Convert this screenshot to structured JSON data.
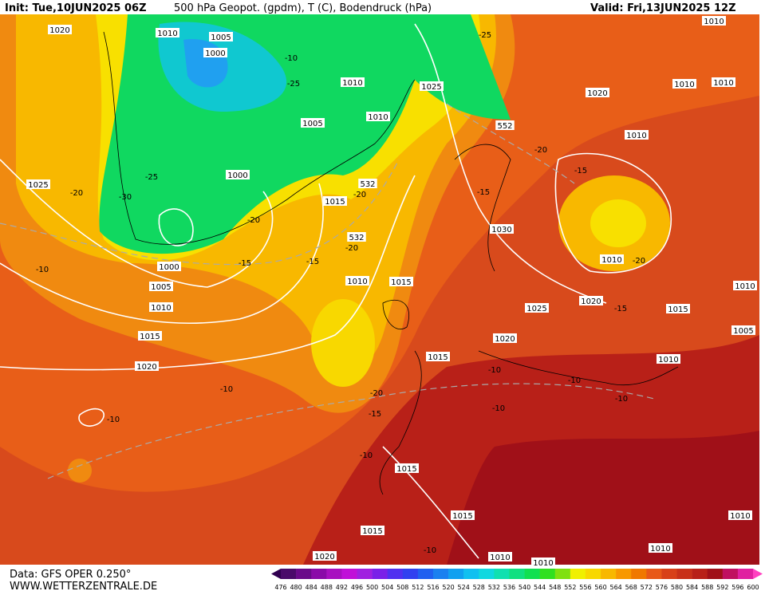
{
  "header": {
    "init": "Init: Tue,10JUN2025 06Z",
    "title": "500 hPa Geopot. (gpdm), T (C), Bodendruck (hPa)",
    "valid": "Valid: Fri,13JUN2025 12Z"
  },
  "footer": {
    "data": "Data: GFS OPER 0.250°",
    "site": "WWW.WETTERZENTRALE.DE"
  },
  "colorbar": {
    "levels": [
      "476",
      "480",
      "484",
      "488",
      "492",
      "496",
      "500",
      "504",
      "508",
      "512",
      "516",
      "520",
      "524",
      "528",
      "532",
      "536",
      "540",
      "544",
      "548",
      "552",
      "556",
      "560",
      "564",
      "568",
      "572",
      "576",
      "580",
      "584",
      "588",
      "592",
      "596",
      "600"
    ],
    "colors": [
      "#4a0a6a",
      "#6a0a8a",
      "#8a0aa8",
      "#a810c0",
      "#c010d8",
      "#a020e0",
      "#7a20e8",
      "#5030f0",
      "#3040f0",
      "#2060f0",
      "#1a80f0",
      "#10a0f0",
      "#10c0f0",
      "#10d8e0",
      "#10e0b0",
      "#10e080",
      "#10e050",
      "#30e020",
      "#80e010",
      "#f0f000",
      "#f8d800",
      "#f8b800",
      "#f89800",
      "#f07800",
      "#e85818",
      "#d84018",
      "#c83018",
      "#b82018",
      "#a01018",
      "#c01060",
      "#e020a0"
    ]
  },
  "map": {
    "labels": [
      "1020",
      "1010",
      "1005",
      "1000",
      "-10",
      "-25",
      "1010",
      "1025",
      "-25",
      "1020",
      "1010",
      "1010",
      "1010",
      "1005",
      "1010",
      "552",
      "-20",
      "1010",
      "-15",
      "-25",
      "1000",
      "1025",
      "-20",
      "-30",
      "532",
      "-20",
      "1015",
      "-15",
      "-20",
      "1030",
      "532",
      "-20",
      "1010",
      "-20",
      "-15",
      "-15",
      "1000",
      "-10",
      "1010",
      "1015",
      "1005",
      "1010",
      "1020",
      "1025",
      "-15",
      "1015",
      "1010",
      "1015",
      "1020",
      "1005",
      "1015",
      "1010",
      "1020",
      "-10",
      "-10",
      "-10",
      "-20",
      "-10",
      "-15",
      "-10",
      "-10",
      "-10",
      "1015",
      "1010",
      "1015",
      "1015",
      "1010",
      "-10",
      "1020",
      "1010",
      "1010"
    ]
  }
}
